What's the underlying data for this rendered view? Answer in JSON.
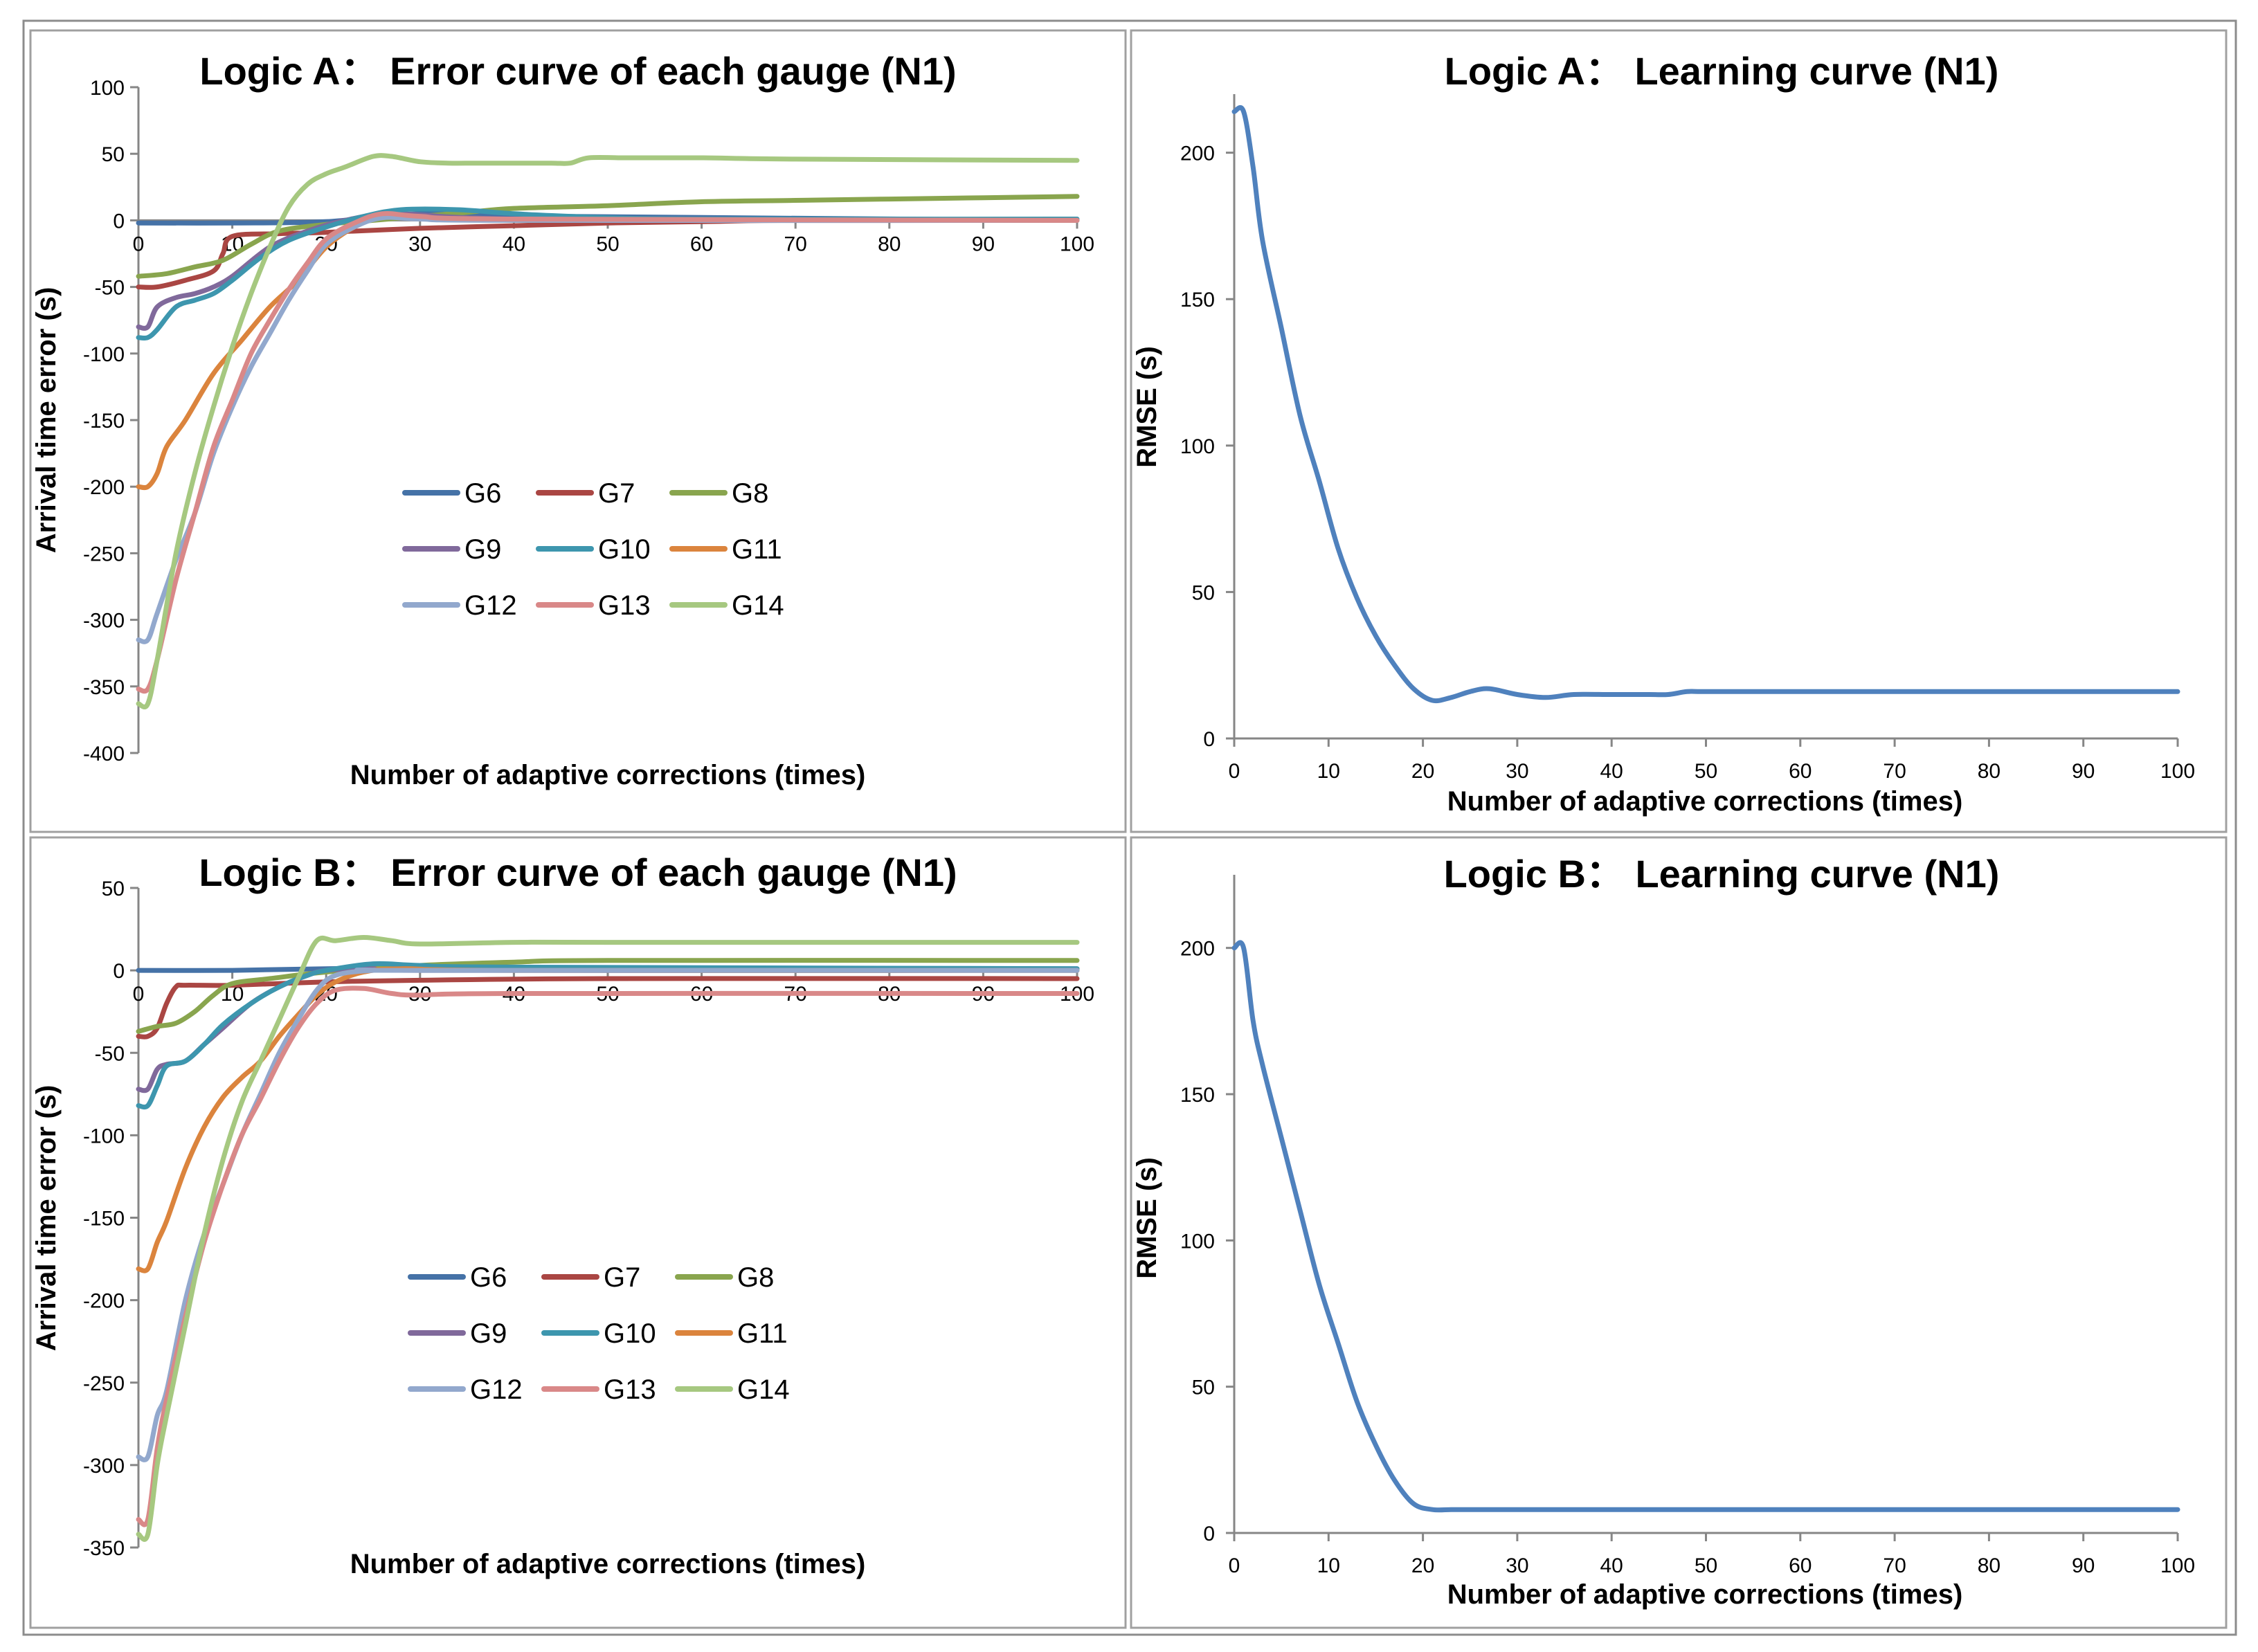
{
  "figure": {
    "name": "tsunami-arrival-error-and-learning-curves"
  },
  "chart_data": [
    {
      "id": "panel-a-error",
      "type": "line",
      "title": "Logic A： Error curve of each gauge (N1)",
      "xlabel": "Number of adaptive corrections (times)",
      "ylabel": "Arrival time error (s)",
      "xlim": [
        0,
        100
      ],
      "ylim": [
        -400,
        100
      ],
      "xticks": [
        0,
        10,
        20,
        30,
        40,
        50,
        60,
        70,
        80,
        90,
        100
      ],
      "yticks": [
        -400,
        -350,
        -300,
        -250,
        -200,
        -150,
        -100,
        -50,
        0,
        50,
        100
      ],
      "legend": "center, 3 columns",
      "series": [
        {
          "name": "G6",
          "color": "#4572A7",
          "x": [
            0,
            10,
            20,
            30,
            45,
            100
          ],
          "y": [
            -2,
            -2,
            -1,
            5,
            3,
            0
          ]
        },
        {
          "name": "G7",
          "color": "#AA4643",
          "x": [
            0,
            2,
            5,
            8,
            9,
            10,
            15,
            20,
            30,
            40,
            50,
            60,
            70,
            100
          ],
          "y": [
            -50,
            -50,
            -45,
            -38,
            -25,
            -12,
            -10,
            -9,
            -6,
            -4,
            -2,
            -1,
            0,
            0
          ]
        },
        {
          "name": "G8",
          "color": "#89A54E",
          "x": [
            0,
            3,
            6,
            9,
            12,
            15,
            20,
            25,
            30,
            35,
            40,
            50,
            60,
            70,
            80,
            90,
            100
          ],
          "y": [
            -42,
            -40,
            -35,
            -30,
            -18,
            -8,
            -3,
            0,
            3,
            6,
            9,
            11,
            14,
            15,
            16,
            17,
            18
          ]
        },
        {
          "name": "G9",
          "color": "#80699B",
          "x": [
            0,
            1,
            2,
            4,
            6,
            8,
            10,
            14,
            18,
            22,
            27,
            35,
            50,
            100
          ],
          "y": [
            -80,
            -80,
            -65,
            -58,
            -55,
            -50,
            -42,
            -20,
            -8,
            0,
            5,
            2,
            0,
            0
          ]
        },
        {
          "name": "G10",
          "color": "#3D96AE",
          "x": [
            0,
            1,
            2,
            4,
            6,
            8,
            10,
            13,
            16,
            20,
            24,
            28,
            34,
            40,
            46,
            50,
            60,
            100
          ],
          "y": [
            -88,
            -88,
            -82,
            -65,
            -60,
            -55,
            -45,
            -28,
            -15,
            -5,
            3,
            8,
            8,
            5,
            3,
            2,
            1,
            1
          ]
        },
        {
          "name": "G11",
          "color": "#DB843D",
          "x": [
            0,
            1,
            2,
            3,
            5,
            8,
            11,
            14,
            17,
            20,
            23,
            26,
            30,
            40,
            60,
            100
          ],
          "y": [
            -200,
            -200,
            -190,
            -170,
            -150,
            -115,
            -90,
            -65,
            -45,
            -20,
            -5,
            3,
            2,
            0,
            0,
            0
          ]
        },
        {
          "name": "G12",
          "color": "#92A8CD",
          "x": [
            0,
            1,
            2,
            4,
            6,
            8,
            10,
            12,
            14,
            16,
            18,
            20,
            23,
            26,
            30,
            40,
            100
          ],
          "y": [
            -315,
            -315,
            -295,
            -255,
            -220,
            -175,
            -140,
            -110,
            -85,
            -60,
            -38,
            -18,
            -5,
            2,
            1,
            0,
            0
          ]
        },
        {
          "name": "G13",
          "color": "#D98888",
          "x": [
            0,
            1,
            2,
            4,
            6,
            8,
            10,
            12,
            14,
            16,
            18,
            20,
            23,
            26,
            30,
            40,
            100
          ],
          "y": [
            -352,
            -352,
            -330,
            -270,
            -220,
            -170,
            -135,
            -100,
            -75,
            -52,
            -32,
            -14,
            -2,
            5,
            3,
            1,
            0
          ]
        },
        {
          "name": "G14",
          "color": "#A6C880",
          "x": [
            0,
            1,
            2,
            4,
            6,
            8,
            10,
            12,
            14,
            16,
            18,
            20,
            22,
            25,
            27,
            30,
            33,
            36,
            40,
            44,
            46,
            48,
            52,
            60,
            70,
            100
          ],
          "y": [
            -363,
            -363,
            -330,
            -250,
            -190,
            -140,
            -95,
            -55,
            -20,
            10,
            27,
            35,
            40,
            48,
            48,
            44,
            43,
            43,
            43,
            43,
            43,
            47,
            47,
            47,
            46,
            45
          ]
        }
      ]
    },
    {
      "id": "panel-a-learning",
      "type": "line",
      "title": "Logic A： Learning curve (N1)",
      "xlabel": "Number of adaptive corrections (times)",
      "ylabel": "RMSE (s)",
      "xlim": [
        0,
        100
      ],
      "ylim": [
        0,
        220
      ],
      "xticks": [
        0,
        10,
        20,
        30,
        40,
        50,
        60,
        70,
        80,
        90,
        100
      ],
      "yticks": [
        0,
        50,
        100,
        150,
        200
      ],
      "series": [
        {
          "name": "RMSE",
          "color": "#4F81BD",
          "x": [
            0,
            1,
            2,
            3,
            5,
            7,
            9,
            11,
            13,
            15,
            17,
            19,
            21,
            23,
            25,
            27,
            30,
            33,
            36,
            40,
            44,
            46,
            48,
            50,
            60,
            70,
            80,
            100
          ],
          "y": [
            214,
            214,
            195,
            170,
            140,
            110,
            88,
            65,
            48,
            35,
            25,
            17,
            13,
            14,
            16,
            17,
            15,
            14,
            15,
            15,
            15,
            15,
            16,
            16,
            16,
            16,
            16,
            16
          ]
        }
      ]
    },
    {
      "id": "panel-b-error",
      "type": "line",
      "title": "Logic B： Error curve of each gauge (N1)",
      "xlabel": "Number of adaptive corrections (times)",
      "ylabel": "Arrival time error (s)",
      "xlim": [
        0,
        100
      ],
      "ylim": [
        -350,
        50
      ],
      "xticks": [
        0,
        10,
        20,
        30,
        40,
        50,
        60,
        70,
        80,
        90,
        100
      ],
      "yticks": [
        -350,
        -300,
        -250,
        -200,
        -150,
        -100,
        -50,
        0,
        50
      ],
      "legend": "center, 3 columns",
      "series": [
        {
          "name": "G6",
          "color": "#4572A7",
          "x": [
            0,
            10,
            20,
            30,
            100
          ],
          "y": [
            0,
            0,
            1,
            1,
            1
          ]
        },
        {
          "name": "G7",
          "color": "#AA4643",
          "x": [
            0,
            1,
            2,
            3,
            4,
            5,
            10,
            20,
            30,
            50,
            100
          ],
          "y": [
            -40,
            -40,
            -35,
            -20,
            -10,
            -9,
            -9,
            -7,
            -6,
            -5,
            -5
          ]
        },
        {
          "name": "G8",
          "color": "#89A54E",
          "x": [
            0,
            2,
            4,
            6,
            8,
            10,
            14,
            20,
            30,
            40,
            50,
            100
          ],
          "y": [
            -37,
            -34,
            -32,
            -25,
            -15,
            -8,
            -5,
            -1,
            3,
            5,
            6,
            6
          ]
        },
        {
          "name": "G9",
          "color": "#80699B",
          "x": [
            0,
            1,
            2,
            3,
            5,
            7,
            9,
            12,
            15,
            18,
            20,
            25,
            30,
            100
          ],
          "y": [
            -72,
            -72,
            -60,
            -57,
            -55,
            -45,
            -35,
            -20,
            -10,
            -3,
            0,
            1,
            0,
            0
          ]
        },
        {
          "name": "G10",
          "color": "#3D96AE",
          "x": [
            0,
            1,
            2,
            3,
            5,
            7,
            9,
            12,
            15,
            18,
            20,
            25,
            30,
            40,
            100
          ],
          "y": [
            -82,
            -82,
            -70,
            -58,
            -55,
            -45,
            -33,
            -20,
            -10,
            -3,
            0,
            4,
            3,
            2,
            1
          ]
        },
        {
          "name": "G11",
          "color": "#DB843D",
          "x": [
            0,
            1,
            2,
            3,
            5,
            7,
            9,
            11,
            13,
            15,
            17,
            19,
            21,
            24,
            28,
            40,
            100
          ],
          "y": [
            -181,
            -181,
            -165,
            -152,
            -120,
            -95,
            -77,
            -65,
            -55,
            -40,
            -27,
            -15,
            -7,
            -1,
            1,
            0,
            0
          ]
        },
        {
          "name": "G12",
          "color": "#92A8CD",
          "x": [
            0,
            1,
            2,
            3,
            5,
            7,
            9,
            11,
            13,
            15,
            17,
            19,
            21,
            25,
            30,
            100
          ],
          "y": [
            -295,
            -295,
            -270,
            -255,
            -200,
            -160,
            -130,
            -100,
            -75,
            -50,
            -30,
            -12,
            -3,
            0,
            0,
            0
          ]
        },
        {
          "name": "G13",
          "color": "#D98888",
          "x": [
            0,
            1,
            2,
            3,
            5,
            7,
            9,
            11,
            13,
            15,
            17,
            19,
            21,
            24,
            27,
            30,
            40,
            100
          ],
          "y": [
            -333,
            -333,
            -290,
            -260,
            -210,
            -165,
            -130,
            -100,
            -78,
            -55,
            -35,
            -20,
            -12,
            -11,
            -14,
            -15,
            -14,
            -14
          ]
        },
        {
          "name": "G14",
          "color": "#A6C880",
          "x": [
            0,
            1,
            2,
            3,
            5,
            7,
            9,
            11,
            13,
            15,
            17,
            19,
            21,
            24,
            27,
            30,
            40,
            50,
            100
          ],
          "y": [
            -342,
            -342,
            -300,
            -270,
            -215,
            -160,
            -115,
            -80,
            -55,
            -30,
            -5,
            18,
            18,
            20,
            18,
            16,
            17,
            17,
            17
          ]
        }
      ]
    },
    {
      "id": "panel-b-learning",
      "type": "line",
      "title": "Logic B： Learning curve (N1)",
      "xlabel": "Number of adaptive corrections (times)",
      "ylabel": "RMSE (s)",
      "xlim": [
        0,
        100
      ],
      "ylim": [
        0,
        225
      ],
      "xticks": [
        0,
        10,
        20,
        30,
        40,
        50,
        60,
        70,
        80,
        90,
        100
      ],
      "yticks": [
        0,
        50,
        100,
        150,
        200
      ],
      "series": [
        {
          "name": "RMSE",
          "color": "#4F81BD",
          "x": [
            0,
            1,
            2,
            3,
            5,
            7,
            9,
            11,
            13,
            15,
            17,
            19,
            21,
            23,
            25,
            30,
            40,
            50,
            100
          ],
          "y": [
            200,
            200,
            175,
            160,
            135,
            110,
            85,
            65,
            45,
            30,
            18,
            10,
            8,
            8,
            8,
            8,
            8,
            8,
            8
          ]
        }
      ]
    }
  ]
}
